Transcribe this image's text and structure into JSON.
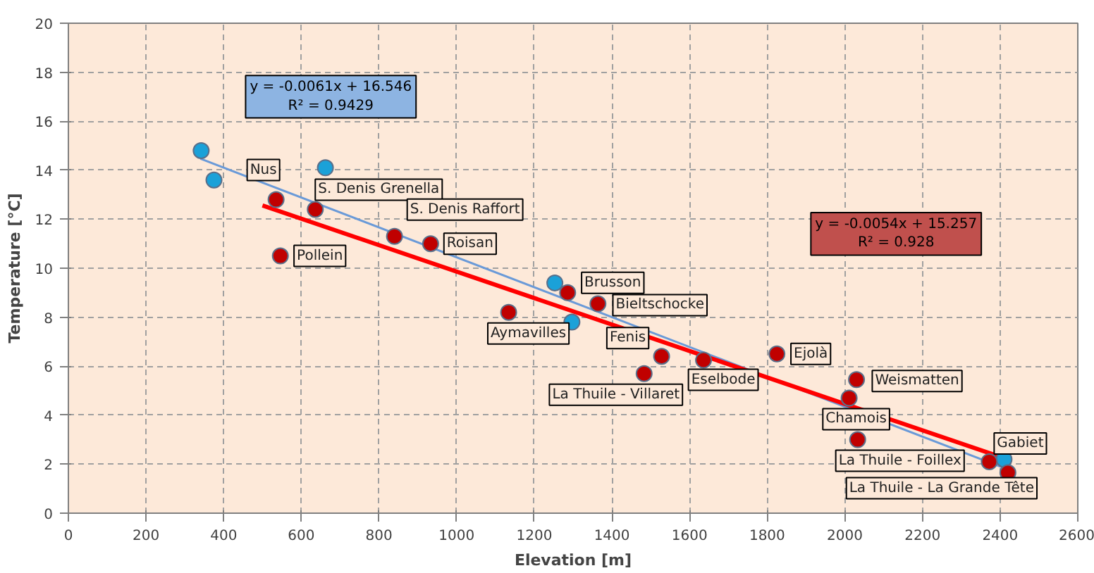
{
  "chart_data": {
    "type": "scatter",
    "xlabel": "Elevation [m]",
    "ylabel": "Temperature [°C]",
    "xlim": [
      0,
      2600
    ],
    "ylim": [
      0,
      20
    ],
    "xticks": [
      0,
      200,
      400,
      600,
      800,
      1000,
      1200,
      1400,
      1600,
      1800,
      2000,
      2200,
      2400,
      2600
    ],
    "yticks": [
      0,
      2,
      4,
      6,
      8,
      10,
      12,
      14,
      16,
      18,
      20
    ],
    "grid": true,
    "series": [
      {
        "marker": "circle",
        "color": "#1ba1d8",
        "x": [
          342,
          375,
          662,
          1253,
          1297,
          1640,
          2410
        ],
        "values": [
          14.8,
          13.6,
          14.1,
          9.4,
          7.8,
          null,
          2.2
        ]
      },
      {
        "marker": "circle",
        "color": "#c00000",
        "x": [
          535,
          636,
          840,
          933,
          546,
          1286,
          1364,
          1134,
          1528,
          1483,
          1636,
          1825,
          2030,
          2011,
          2033,
          2372,
          2420
        ],
        "values": [
          12.8,
          12.4,
          11.3,
          11.0,
          10.5,
          9.0,
          8.55,
          8.2,
          6.4,
          5.7,
          6.25,
          6.5,
          5.45,
          4.7,
          3.0,
          2.1,
          1.65
        ]
      },
      {
        "type": "line",
        "marker": "none",
        "color": "#6a9ad8",
        "x": [
          340,
          2430
        ],
        "values": [
          14.47,
          1.72
        ]
      },
      {
        "type": "line",
        "marker": "none",
        "color": "#ff0000",
        "x": [
          500,
          2400
        ],
        "values": [
          12.56,
          2.3
        ]
      }
    ],
    "annotations": [
      "y = -0.0061x + 16.546\nR² = 0.9429",
      "y = -0.0054x + 15.257\nR² = 0.928",
      {
        "text": "Nus",
        "x": 535,
        "y": 12.8
      },
      {
        "text": "S. Denis Grenella",
        "x": 636,
        "y": 12.4
      },
      {
        "text": "S. Denis Raffort",
        "x": 840,
        "y": 11.3
      },
      {
        "text": "Roisan",
        "x": 933,
        "y": 11.0
      },
      {
        "text": "Pollein",
        "x": 546,
        "y": 10.5
      },
      {
        "text": "Brusson",
        "x": 1286,
        "y": 9.0
      },
      {
        "text": "Bieltschocke",
        "x": 1364,
        "y": 8.55
      },
      {
        "text": "Aymavilles",
        "x": 1134,
        "y": 8.2
      },
      {
        "text": "Fenis",
        "x": 1528,
        "y": 6.4
      },
      {
        "text": "La Thuile - Villaret",
        "x": 1483,
        "y": 5.7
      },
      {
        "text": "Eselbode",
        "x": 1636,
        "y": 6.25
      },
      {
        "text": "Ejolà",
        "x": 1825,
        "y": 6.5
      },
      {
        "text": "Weismatten",
        "x": 2030,
        "y": 5.45
      },
      {
        "text": "Chamois",
        "x": 2011,
        "y": 4.7
      },
      {
        "text": "La Thuile - Foillex",
        "x": 2033,
        "y": 3.0
      },
      {
        "text": "Gabiet",
        "x": 2372,
        "y": 2.1
      },
      {
        "text": "La Thuile - La Grande Tête",
        "x": 2420,
        "y": 1.65
      }
    ]
  }
}
